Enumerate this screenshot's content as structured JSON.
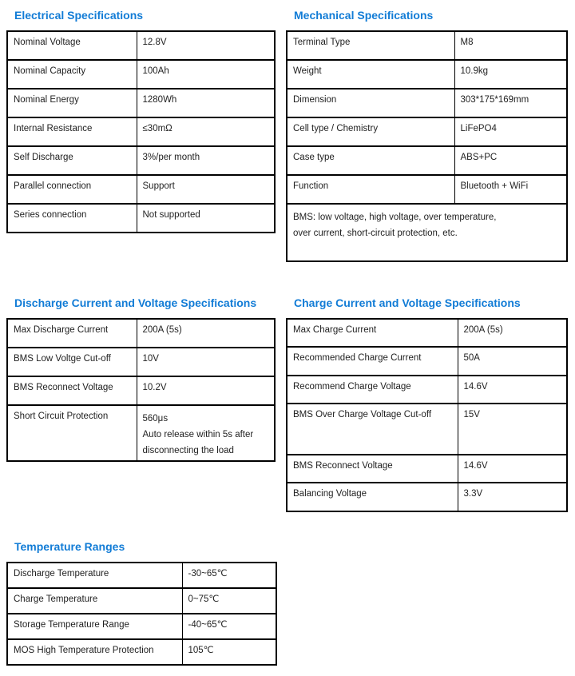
{
  "page": {
    "accent_color": "#127CD6",
    "border_color": "#000000",
    "text_color": "#1F1F1F",
    "background": "#FFFFFF"
  },
  "sections": [
    {
      "id": "electrical",
      "title": "Electrical Specifications",
      "rows": [
        {
          "label": "Nominal Voltage",
          "value": "12.8V"
        },
        {
          "label": "Nominal Capacity",
          "value": "100Ah"
        },
        {
          "label": "Nominal Energy",
          "value": "1280Wh"
        },
        {
          "label": "Internal Resistance",
          "value": "≤30mΩ"
        },
        {
          "label": "Self Discharge",
          "value": "3%/per month"
        },
        {
          "label": "Parallel connection",
          "value": "Support"
        },
        {
          "label": "Series connection",
          "value": "Not supported"
        }
      ]
    },
    {
      "id": "mechanical",
      "title": "Mechanical Specifications",
      "rows": [
        {
          "label": "Terminal Type",
          "value": "M8"
        },
        {
          "label": "Weight",
          "value": "10.9kg"
        },
        {
          "label": "Dimension",
          "value": "303*175*169mm"
        },
        {
          "label": "Cell type / Chemistry",
          "value": "LiFePO4"
        },
        {
          "label": "Case type",
          "value": "ABS+PC"
        },
        {
          "label": "Function",
          "value": "Bluetooth + WiFi"
        }
      ],
      "footer_lines": [
        "BMS: low voltage, high voltage, over temperature,",
        "over current, short-circuit protection, etc."
      ]
    },
    {
      "id": "discharge",
      "title": "Discharge Current and Voltage Specifications",
      "rows": [
        {
          "label": "Max Discharge Current",
          "value": "200A (5s)"
        },
        {
          "label": "BMS Low Voltge Cut-off",
          "value": "10V"
        },
        {
          "label": "BMS Reconnect Voltage",
          "value": "10.2V"
        },
        {
          "label": "Short Circuit Protection",
          "value_lines": [
            "560μs",
            "Auto release within 5s after",
            "disconnecting the load"
          ]
        }
      ]
    },
    {
      "id": "charge",
      "title": "Charge Current and Voltage Specifications",
      "rows": [
        {
          "label": "Max Charge Current",
          "value": "200A (5s)"
        },
        {
          "label": "Recommended Charge Current",
          "value": "50A"
        },
        {
          "label": "Recommend Charge Voltage",
          "value": "14.6V"
        },
        {
          "label": "BMS Over Charge Voltage Cut-off",
          "value": "15V"
        },
        {
          "label": "BMS Reconnect Voltage",
          "value": "14.6V"
        },
        {
          "label": "Balancing Voltage",
          "value": "3.3V"
        }
      ]
    },
    {
      "id": "temperature",
      "title": "Temperature Ranges",
      "rows": [
        {
          "label": "Discharge Temperature",
          "value": "-30~65℃"
        },
        {
          "label": "Charge Temperature",
          "value": "0~75℃"
        },
        {
          "label": "Storage Temperature Range",
          "value": "-40~65℃"
        },
        {
          "label": "MOS High Temperature Protection",
          "value": "105℃"
        }
      ]
    }
  ]
}
